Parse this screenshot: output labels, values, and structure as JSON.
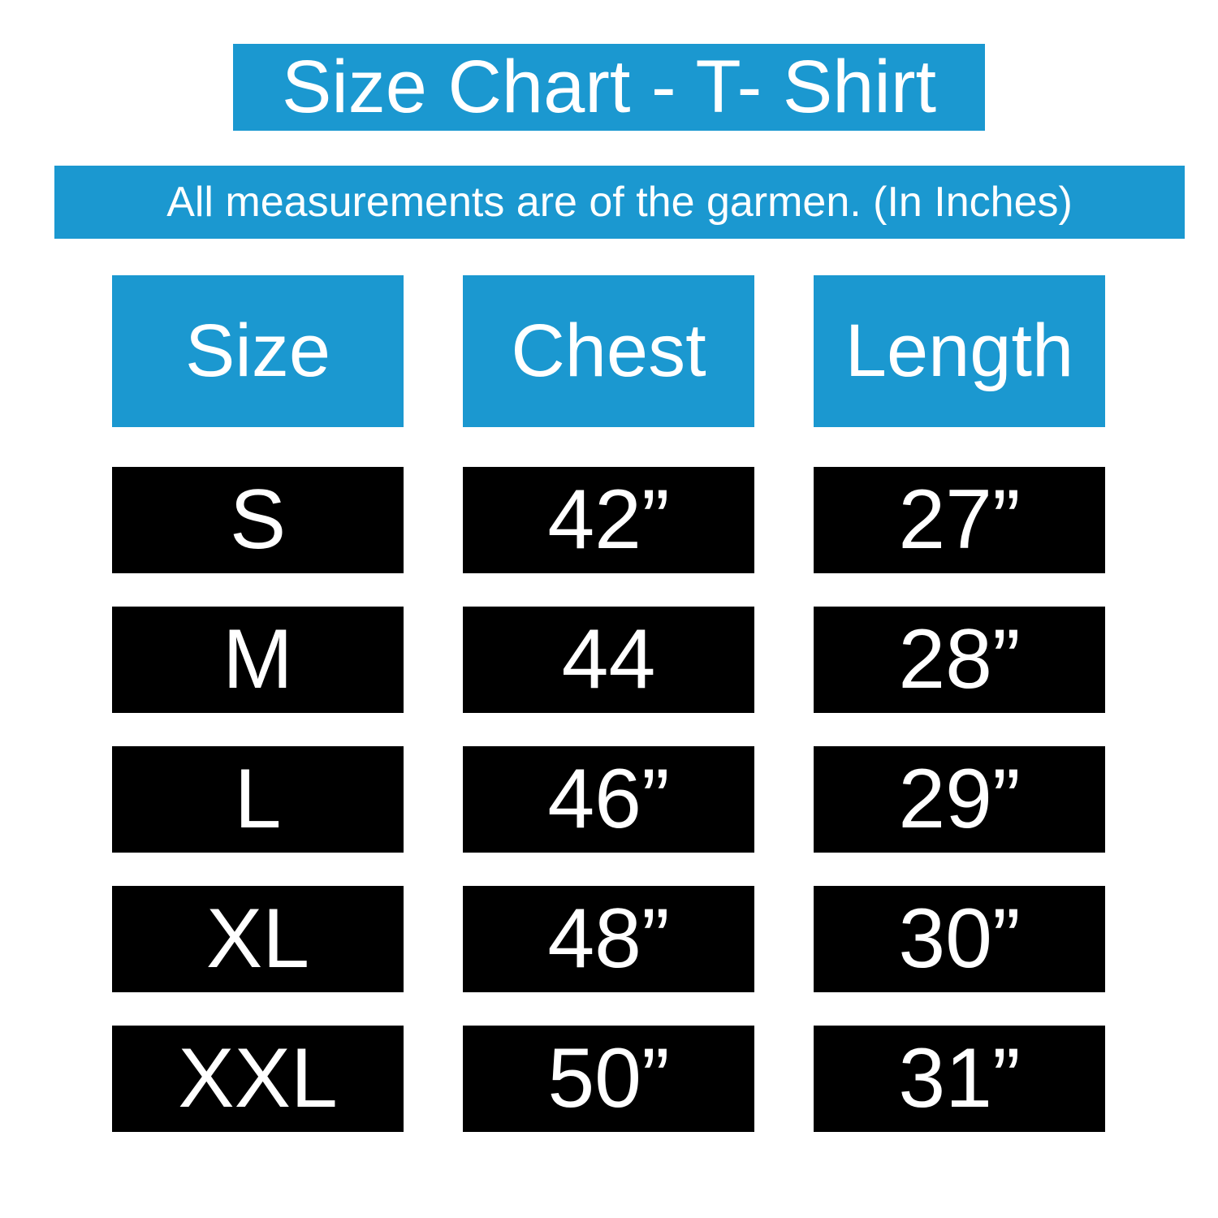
{
  "title": "Size Chart - T- Shirt",
  "subtitle": "All measurements are of the garmen. (In Inches)",
  "colors": {
    "accent": "#1b98d0",
    "cell_background": "#000000",
    "text": "#ffffff"
  },
  "table": {
    "headers": [
      "Size",
      "Chest",
      "Length"
    ],
    "rows": [
      [
        "S",
        "42”",
        "27”"
      ],
      [
        "M",
        "44",
        "28”"
      ],
      [
        "L",
        "46”",
        "29”"
      ],
      [
        "XL",
        "48”",
        "30”"
      ],
      [
        "XXL",
        "50”",
        "31”"
      ]
    ]
  }
}
